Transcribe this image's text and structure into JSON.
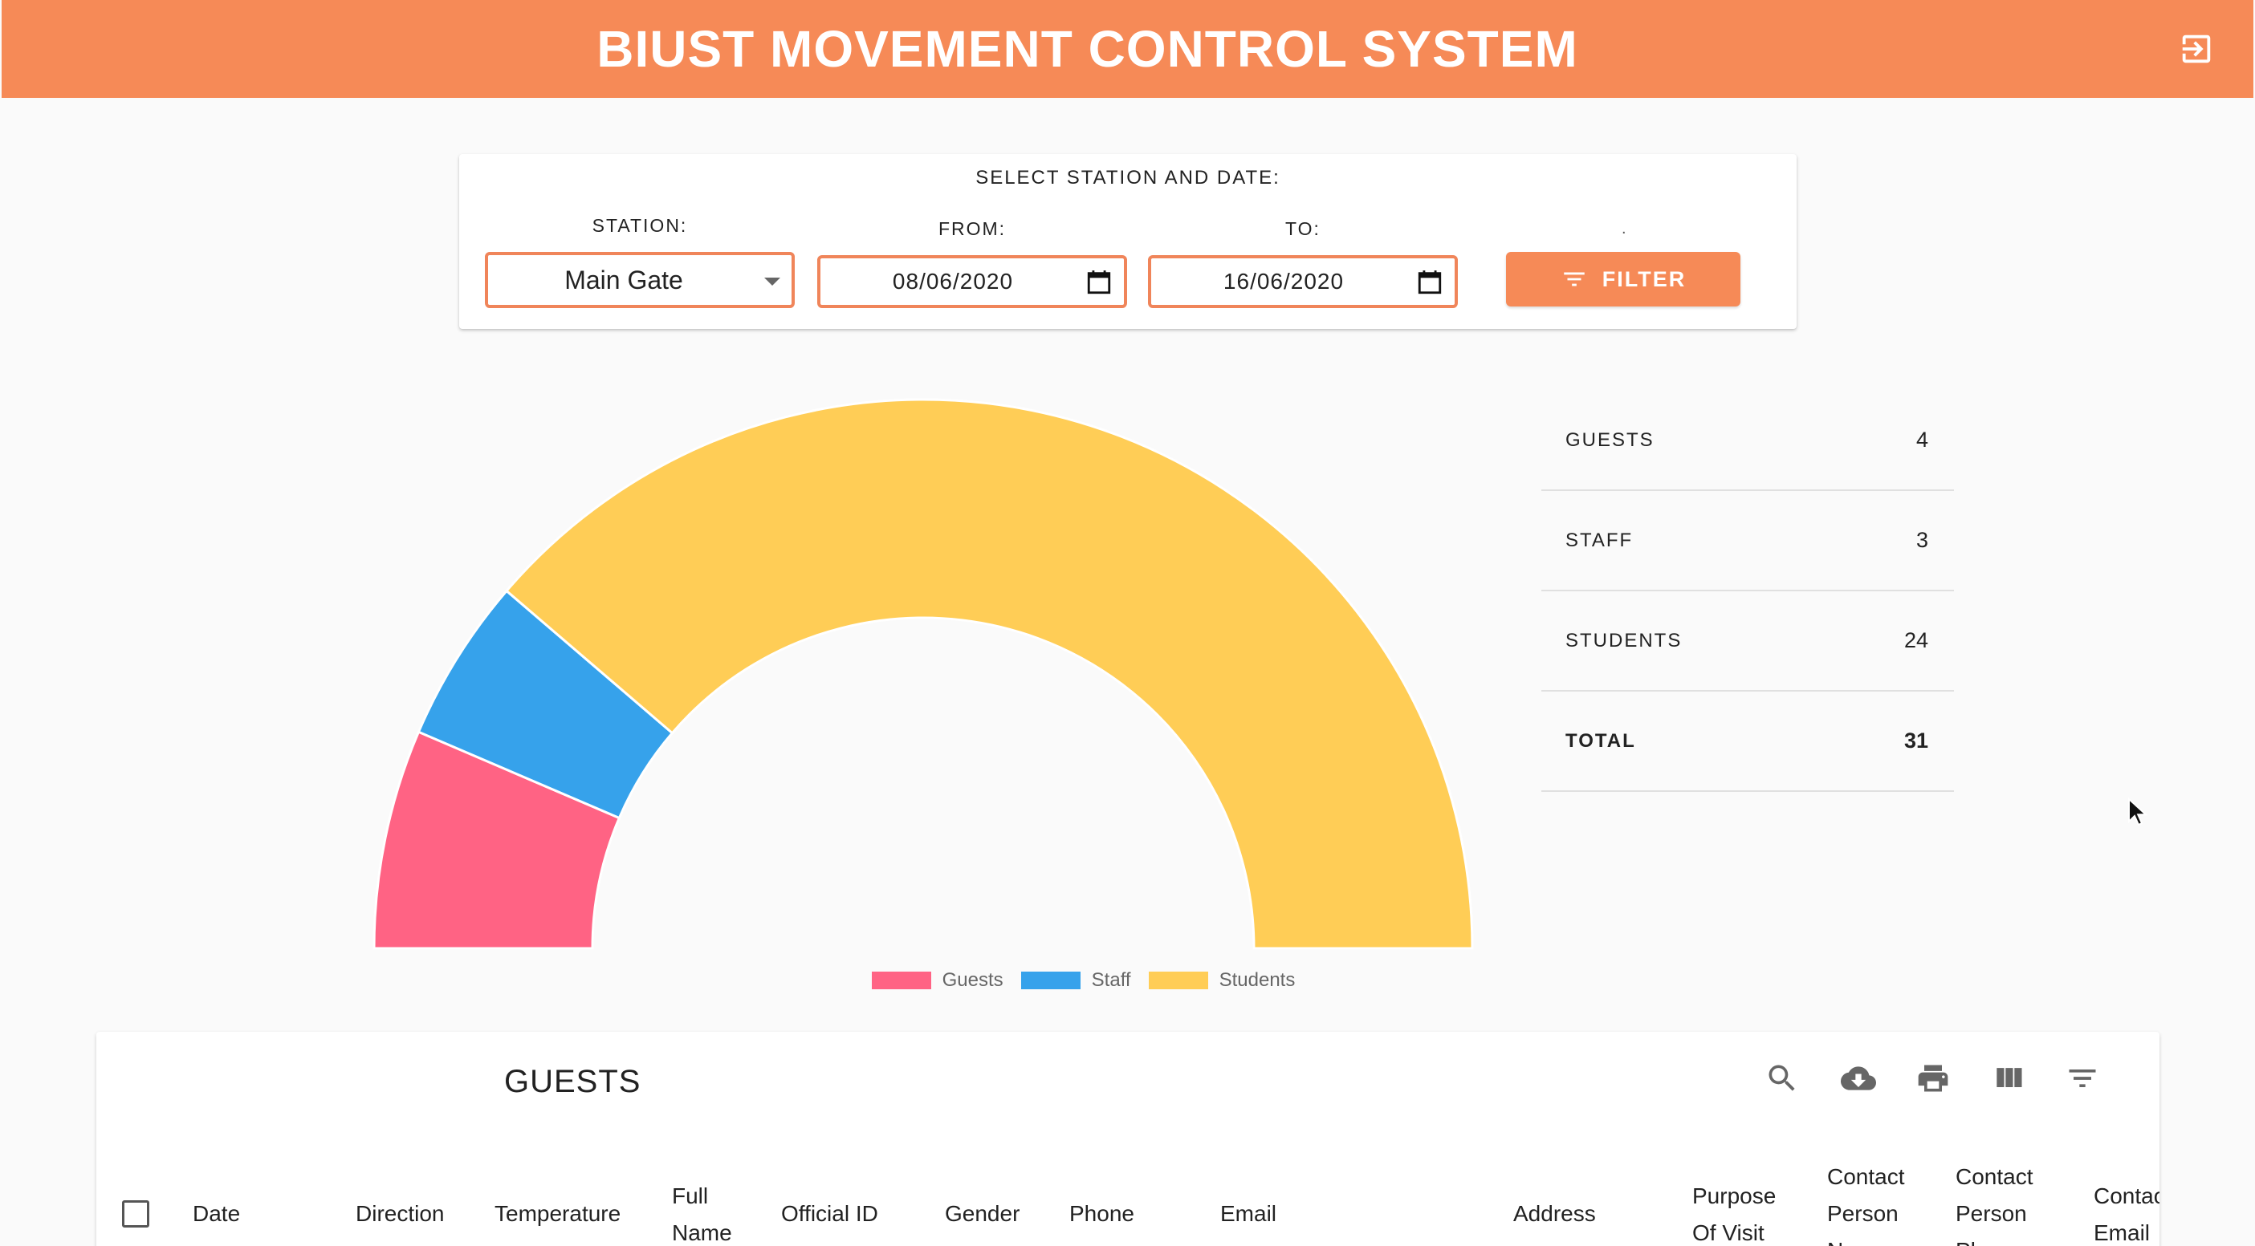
{
  "app": {
    "title": "BIUST MOVEMENT CONTROL SYSTEM"
  },
  "filter": {
    "heading": "SELECT STATION AND DATE:",
    "station_label": "STATION:",
    "station_value": "Main Gate",
    "from_label": "FROM:",
    "from_value": "08/06/2020",
    "to_label": "TO:",
    "to_value": "16/06/2020",
    "dot_label": ".",
    "button_label": "FILTER"
  },
  "chart_data": {
    "type": "pie",
    "subtype": "half-doughnut",
    "categories": [
      "Guests",
      "Staff",
      "Students"
    ],
    "values": [
      4,
      3,
      24
    ],
    "colors": [
      "#ff6384",
      "#36a2eb",
      "#ffcd56"
    ],
    "legend_position": "bottom",
    "title": ""
  },
  "stats": [
    {
      "label": "GUESTS",
      "value": "4"
    },
    {
      "label": "STAFF",
      "value": "3"
    },
    {
      "label": "STUDENTS",
      "value": "24"
    },
    {
      "label": "TOTAL",
      "value": "31"
    }
  ],
  "table": {
    "title": "GUESTS",
    "icons": [
      "search-icon",
      "download-icon",
      "print-icon",
      "columns-icon",
      "filter-list-icon"
    ],
    "headers": [
      "Date",
      "Direction",
      "Temperature",
      "Full Name",
      "Official ID",
      "Gender",
      "Phone",
      "Email",
      "Address",
      "Purpose Of Visit",
      "Contact Person Name",
      "Contact Person Phone",
      "Contact Email"
    ]
  }
}
